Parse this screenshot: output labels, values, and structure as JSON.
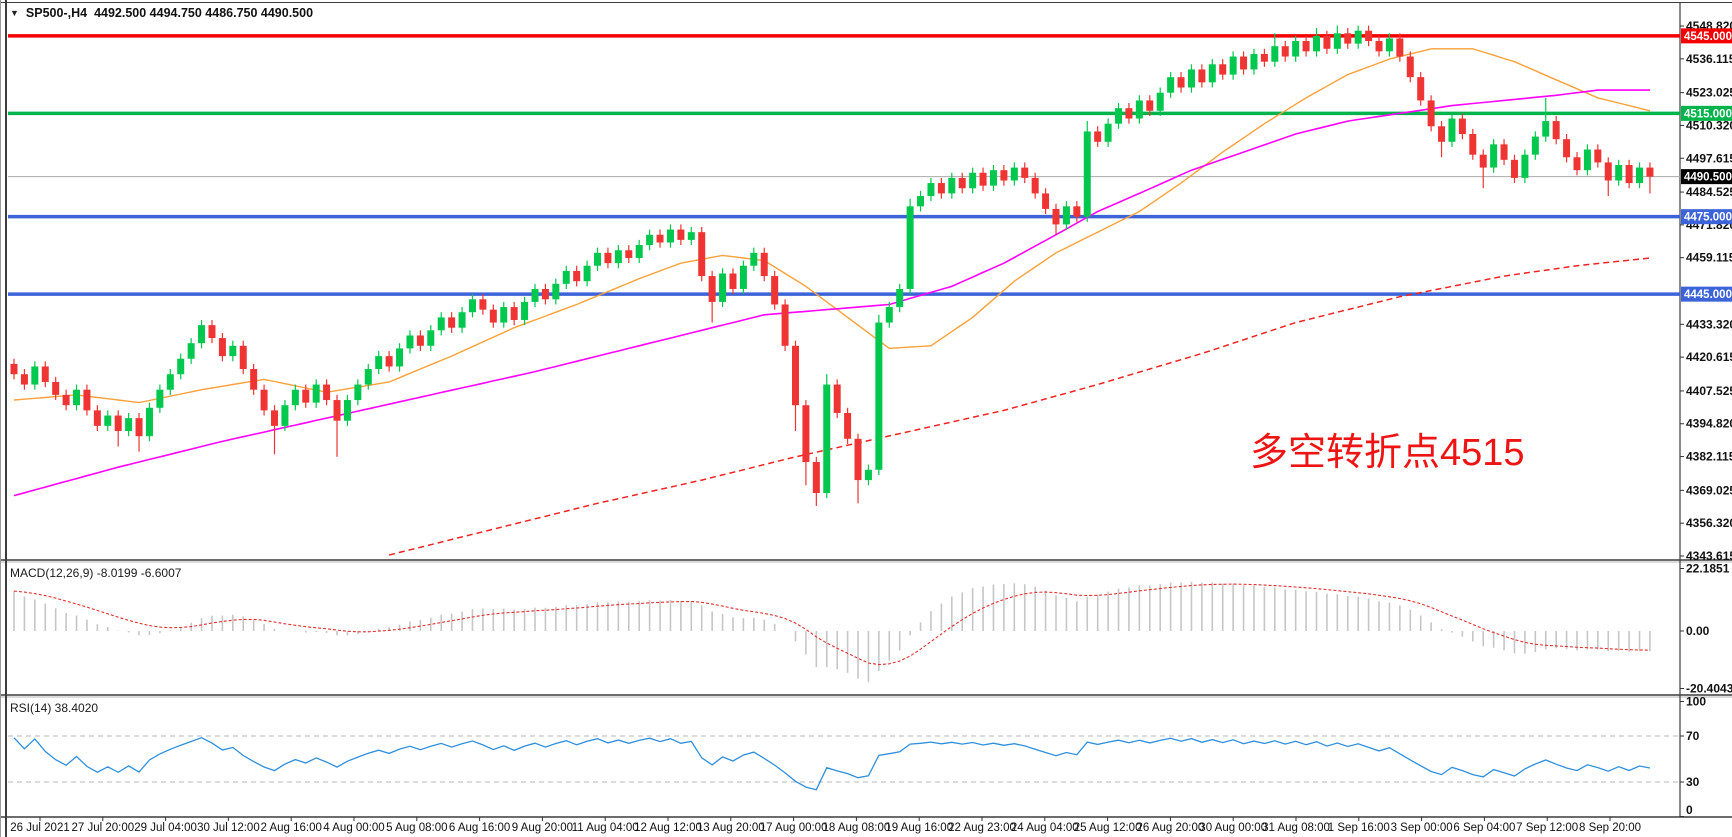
{
  "header": {
    "symbol": "SP500-,H4",
    "ohlc": "4492.500 4494.750 4486.750 4490.500",
    "collapse_icon": "triangle-down"
  },
  "annotation": {
    "text": "多空转折点4515",
    "color": "#ee1414"
  },
  "chart_data": {
    "type": "candlestick",
    "title": "SP500- H4",
    "price_axis": {
      "ticks": [
        "4548.820",
        "4536.115",
        "4523.025",
        "4510.320",
        "4497.615",
        "4484.525",
        "4471.820",
        "4459.115",
        "4433.320",
        "4420.615",
        "4407.525",
        "4394.820",
        "4382.115",
        "4369.025",
        "4356.320",
        "4343.615"
      ],
      "top_value": 4548.82,
      "bottom_value": 4343.615
    },
    "levels": [
      {
        "name": "resistance-4545",
        "text": "4545.000",
        "value": 4545.0,
        "line_color": "#f40000",
        "badge_color": "#f40000",
        "width": 3.5
      },
      {
        "name": "pivot-4515",
        "text": "4515.000",
        "value": 4515.0,
        "line_color": "#00b34a",
        "badge_color": "#00b34a",
        "width": 3.5
      },
      {
        "name": "support-4475",
        "text": "4475.000",
        "value": 4475.0,
        "line_color": "#3d63d9",
        "badge_color": "#3d63d9",
        "width": 3.5
      },
      {
        "name": "support-4445",
        "text": "4445.000",
        "value": 4445.0,
        "line_color": "#3d63d9",
        "badge_color": "#3d63d9",
        "width": 3.5
      }
    ],
    "current_price": {
      "text": "4490.500",
      "value": 4490.5,
      "line_color": "#a9a9a9",
      "badge_color": "#000000"
    },
    "x_axis": {
      "labels": [
        "26 Jul 2021",
        "27 Jul 20:00",
        "29 Jul 04:00",
        "30 Jul 12:00",
        "2 Aug 16:00",
        "4 Aug 00:00",
        "5 Aug 08:00",
        "6 Aug 16:00",
        "9 Aug 20:00",
        "11 Aug 04:00",
        "12 Aug 12:00",
        "13 Aug 20:00",
        "17 Aug 00:00",
        "18 Aug 08:00",
        "19 Aug 16:00",
        "22 Aug 23:00",
        "24 Aug 04:00",
        "25 Aug 12:00",
        "26 Aug 20:00",
        "30 Aug 00:00",
        "31 Aug 08:00",
        "1 Sep 16:00",
        "3 Sep 00:00",
        "6 Sep 04:00",
        "7 Sep 12:00",
        "8 Sep 20:00"
      ]
    },
    "candles": {
      "first_open": 4418,
      "default_wick": 2,
      "closes": [
        4414,
        4410,
        4417,
        4411,
        4406,
        4402,
        4408,
        4400,
        4394,
        4398,
        4392,
        4397,
        4390,
        4401,
        4408,
        4414,
        4420,
        4426,
        4433,
        4428,
        4421,
        4425,
        4416,
        4408,
        4400,
        4394,
        4402,
        4408,
        4403,
        4410,
        4404,
        4396,
        4404,
        4410,
        4416,
        4421,
        4417,
        4424,
        4429,
        4425,
        4431,
        4436,
        4432,
        4438,
        4443,
        4439,
        4434,
        4440,
        4435,
        4442,
        4447,
        4443,
        4449,
        4454,
        4450,
        4456,
        4461,
        4457,
        4462,
        4459,
        4464,
        4468,
        4465,
        4470,
        4466,
        4469,
        4452,
        4442,
        4453,
        4447,
        4456,
        4461,
        4452,
        4441,
        4425,
        4402,
        4380,
        4368,
        4410,
        4399,
        4389,
        4373,
        4377,
        4434,
        4440,
        4447,
        4479,
        4483,
        4488,
        4484,
        4490,
        4486,
        4492,
        4487,
        4493,
        4489,
        4494,
        4490,
        4484,
        4478,
        4472,
        4479,
        4475,
        4508,
        4504,
        4511,
        4517,
        4513,
        4520,
        4516,
        4523,
        4529,
        4525,
        4532,
        4527,
        4534,
        4530,
        4537,
        4532,
        4538,
        4535,
        4541,
        4537,
        4543,
        4539,
        4545,
        4540,
        4546,
        4542,
        4547,
        4543,
        4539,
        4544,
        4537,
        4529,
        4520,
        4510,
        4504,
        4513,
        4507,
        4499,
        4494,
        4503,
        4497,
        4490,
        4499,
        4506,
        4512,
        4505,
        4498,
        4493,
        4501,
        4496,
        4489,
        4495,
        4488,
        4494,
        4490.5
      ],
      "wick_high": {
        "63": 4472,
        "78": 4414,
        "83": 4437,
        "86": 4482,
        "103": 4512,
        "121": 4546,
        "125": 4548,
        "127": 4549,
        "129": 4549,
        "147": 4521
      },
      "wick_low": {
        "10": 4386,
        "12": 4384,
        "25": 4383,
        "31": 4382,
        "67": 4434,
        "75": 4392,
        "76": 4371,
        "77": 4363,
        "81": 4364,
        "100": 4468,
        "137": 4498,
        "141": 4486,
        "153": 4483,
        "157": 4484
      }
    },
    "ma_lines": [
      {
        "name": "fast-ma",
        "color": "#f9a13a",
        "width": 1.4,
        "dashed": false,
        "anchors": [
          [
            0,
            4404
          ],
          [
            6,
            4406
          ],
          [
            12,
            4403
          ],
          [
            18,
            4408
          ],
          [
            24,
            4412
          ],
          [
            30,
            4407
          ],
          [
            36,
            4411
          ],
          [
            42,
            4421
          ],
          [
            48,
            4432
          ],
          [
            54,
            4441
          ],
          [
            60,
            4451
          ],
          [
            64,
            4457
          ],
          [
            68,
            4460
          ],
          [
            72,
            4458
          ],
          [
            76,
            4448
          ],
          [
            80,
            4436
          ],
          [
            84,
            4424
          ],
          [
            88,
            4425
          ],
          [
            92,
            4436
          ],
          [
            96,
            4450
          ],
          [
            100,
            4461
          ],
          [
            104,
            4469
          ],
          [
            108,
            4477
          ],
          [
            112,
            4488
          ],
          [
            116,
            4500
          ],
          [
            120,
            4511
          ],
          [
            124,
            4521
          ],
          [
            128,
            4530
          ],
          [
            132,
            4536
          ],
          [
            136,
            4540
          ],
          [
            140,
            4540
          ],
          [
            144,
            4535
          ],
          [
            148,
            4528
          ],
          [
            152,
            4521
          ],
          [
            157,
            4516
          ]
        ]
      },
      {
        "name": "mid-ma",
        "color": "#ff00ff",
        "width": 1.6,
        "dashed": false,
        "anchors": [
          [
            0,
            4367
          ],
          [
            10,
            4378
          ],
          [
            20,
            4388
          ],
          [
            30,
            4397
          ],
          [
            40,
            4406
          ],
          [
            50,
            4415
          ],
          [
            58,
            4423
          ],
          [
            66,
            4431
          ],
          [
            72,
            4437
          ],
          [
            78,
            4439
          ],
          [
            84,
            4441
          ],
          [
            90,
            4448
          ],
          [
            95,
            4457
          ],
          [
            100,
            4468
          ],
          [
            104,
            4477
          ],
          [
            108,
            4484
          ],
          [
            113,
            4493
          ],
          [
            118,
            4500
          ],
          [
            123,
            4507
          ],
          [
            128,
            4512
          ],
          [
            133,
            4515
          ],
          [
            138,
            4518
          ],
          [
            143,
            4520
          ],
          [
            148,
            4522
          ],
          [
            152,
            4524
          ],
          [
            157,
            4524
          ]
        ]
      },
      {
        "name": "slow-ma",
        "color": "#f02222",
        "width": 1.5,
        "dashed": true,
        "anchors": [
          [
            36,
            4344
          ],
          [
            47,
            4355
          ],
          [
            56,
            4364
          ],
          [
            66,
            4373
          ],
          [
            75,
            4382
          ],
          [
            85,
            4391
          ],
          [
            95,
            4400
          ],
          [
            104,
            4410
          ],
          [
            114,
            4422
          ],
          [
            123,
            4434
          ],
          [
            133,
            4444
          ],
          [
            143,
            4452
          ],
          [
            150,
            4456
          ],
          [
            157,
            4459
          ]
        ]
      }
    ],
    "macd": {
      "label": "MACD(12,26,9) -8.0199 -6.6007",
      "params": [
        12,
        26,
        9
      ],
      "current_macd": -8.0199,
      "current_signal": -6.6007,
      "ticks": [
        "22.1851",
        "0.00",
        "-20.4043"
      ],
      "hist_color": "#c6c6c6",
      "signal_color": "#e03131"
    },
    "rsi": {
      "label": "RSI(14) 38.4020",
      "period": 14,
      "current": 38.402,
      "levels": [
        70,
        30
      ],
      "ticks": [
        "100",
        "70",
        "30",
        "0"
      ],
      "line_color": "#2f8fdd"
    }
  },
  "colors": {
    "background": "#ffffff",
    "border": "#3c3c3c",
    "up_candle": "#00c84e",
    "down_candle": "#ef3434",
    "axis_text": "#111111"
  }
}
